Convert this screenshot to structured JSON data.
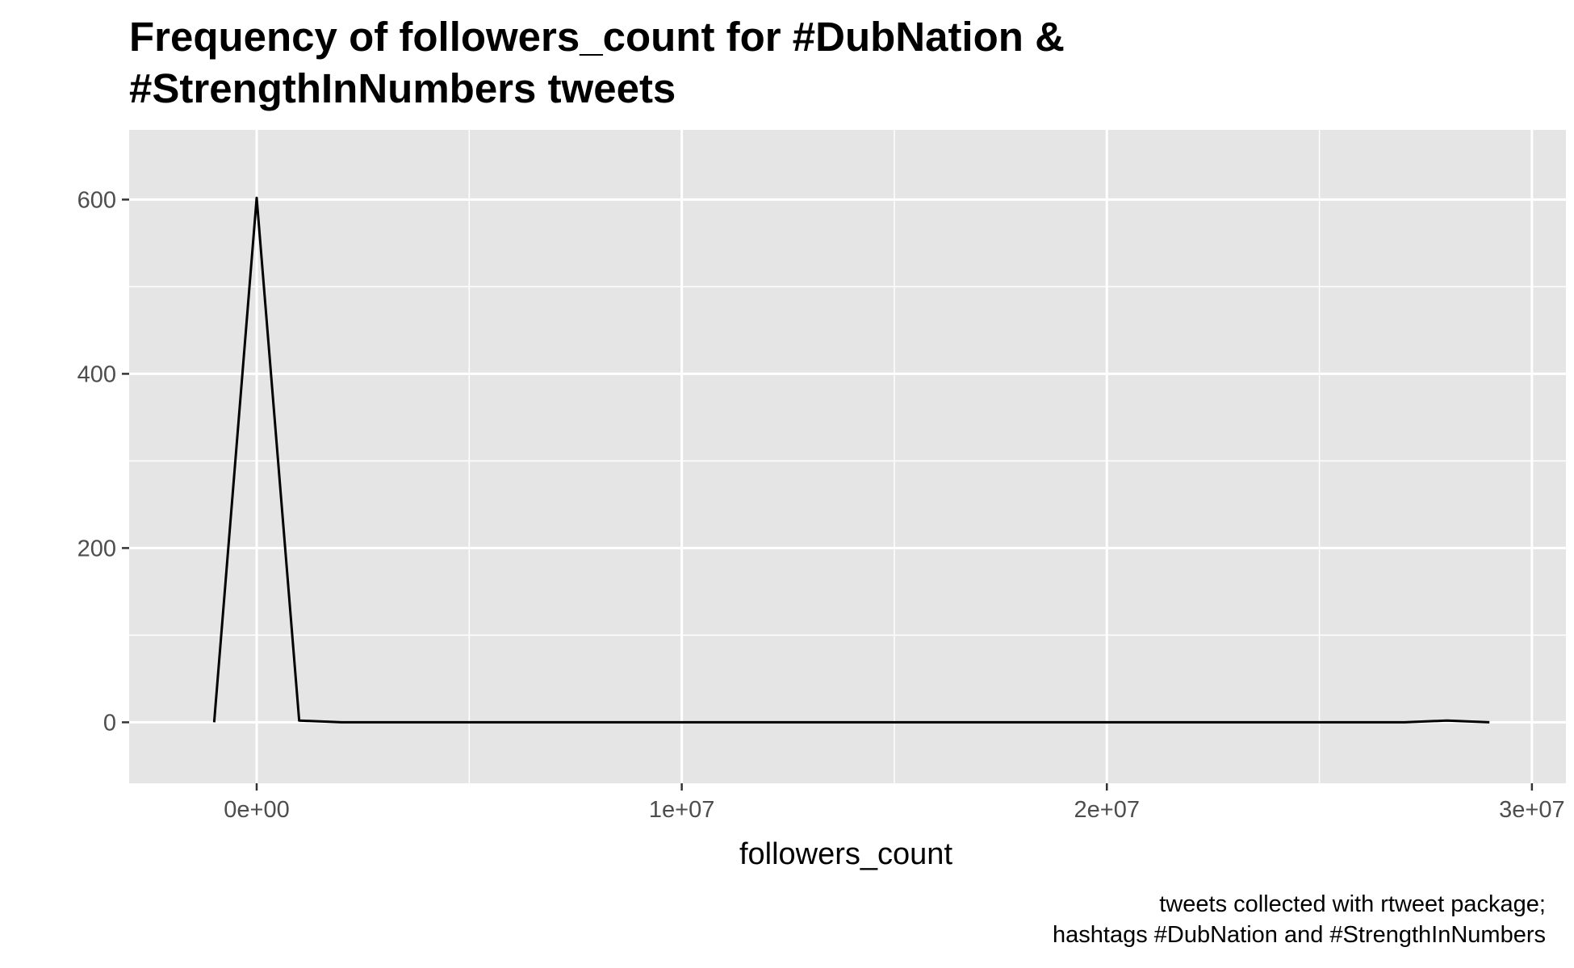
{
  "chart_data": {
    "type": "line",
    "title_lines": [
      "Frequency of followers_count for #DubNation &",
      "#StrengthInNumbers tweets"
    ],
    "xlabel": "followers_count",
    "ylabel": "",
    "caption_lines": [
      "tweets collected with rtweet package;",
      "hashtags #DubNation and #StrengthInNumbers"
    ],
    "xlim": [
      -3000000,
      30800000
    ],
    "ylim": [
      -70,
      680
    ],
    "x_ticks": [
      {
        "value": 0,
        "label": "0e+00"
      },
      {
        "value": 10000000,
        "label": "1e+07"
      },
      {
        "value": 20000000,
        "label": "2e+07"
      },
      {
        "value": 30000000,
        "label": "3e+07"
      }
    ],
    "x_minor_ticks": [
      5000000,
      15000000,
      25000000
    ],
    "y_ticks": [
      {
        "value": 0,
        "label": "0"
      },
      {
        "value": 200,
        "label": "200"
      },
      {
        "value": 400,
        "label": "400"
      },
      {
        "value": 600,
        "label": "600"
      }
    ],
    "y_minor_ticks": [
      100,
      300,
      500
    ],
    "grid": true,
    "colors": {
      "panel_background": "#e5e5e5",
      "grid": "#ffffff",
      "line": "#000000",
      "tick_text": "#4d4d4d",
      "tick_mark": "#333333"
    },
    "series": [
      {
        "x": [
          -1000000,
          0,
          1000000,
          2000000,
          3000000,
          4000000,
          5000000,
          6000000,
          7000000,
          8000000,
          9000000,
          10000000,
          11000000,
          12000000,
          13000000,
          14000000,
          15000000,
          16000000,
          17000000,
          18000000,
          19000000,
          20000000,
          21000000,
          22000000,
          23000000,
          24000000,
          25000000,
          26000000,
          27000000,
          28000000,
          29000000
        ],
        "y": [
          0,
          602,
          2,
          0,
          0,
          0,
          0,
          0,
          0,
          0,
          0,
          0,
          0,
          0,
          0,
          0,
          0,
          0,
          0,
          0,
          0,
          0,
          0,
          0,
          0,
          0,
          0,
          0,
          0,
          2,
          0
        ]
      }
    ]
  }
}
